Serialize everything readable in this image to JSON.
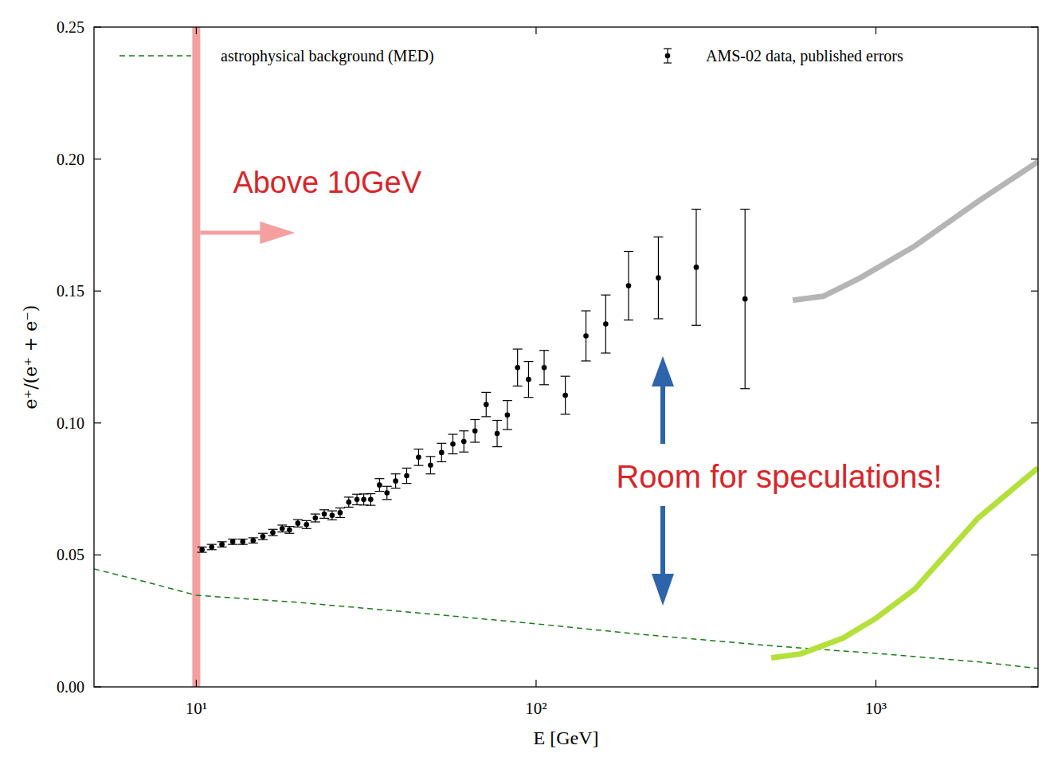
{
  "chart_data": {
    "type": "scatter",
    "x_label": "E [GeV]",
    "y_label": "e⁺/(e⁺ + e⁻)",
    "log": "x",
    "grid": false,
    "legend": "top",
    "xlim": [
      5,
      3000
    ],
    "ylim": [
      0,
      0.25
    ],
    "xticks": [
      {
        "value": 10,
        "label": "10¹"
      },
      {
        "value": 100,
        "label": "10²"
      },
      {
        "value": 1000,
        "label": "10³"
      }
    ],
    "yticks": [
      {
        "value": 0,
        "label": "0.00"
      },
      {
        "value": 0.05,
        "label": "0.05"
      },
      {
        "value": 0.1,
        "label": "0.10"
      },
      {
        "value": 0.15,
        "label": "0.15"
      },
      {
        "value": 0.2,
        "label": "0.20"
      },
      {
        "value": 0.25,
        "label": "0.25"
      }
    ],
    "series": [
      {
        "name": "astrophysical background (MED)",
        "type": "line",
        "line_style": "dashed",
        "color": "#1a7a1a",
        "x": [
          5,
          7,
          10,
          20,
          50,
          100,
          200,
          500,
          1000,
          2000,
          3000
        ],
        "values": [
          0.0447,
          0.04,
          0.0347,
          0.032,
          0.0275,
          0.0239,
          0.02,
          0.0155,
          0.0127,
          0.0095,
          0.007
        ]
      },
      {
        "name": "AMS-02 data, published errors",
        "type": "scatter",
        "marker": "circle",
        "color": "#000000",
        "x": [
          10.4,
          11.1,
          11.9,
          12.8,
          13.7,
          14.7,
          15.7,
          16.8,
          17.9,
          18.8,
          19.9,
          21.1,
          22.4,
          23.8,
          25.1,
          26.5,
          28.1,
          29.7,
          31.1,
          32.6,
          34.6,
          36.4,
          38.6,
          41.6,
          45.1,
          48.9,
          52.7,
          56.9,
          61.3,
          66.1,
          71.3,
          76.8,
          82.3,
          88.2,
          95.0,
          105.6,
          121.9,
          140.2,
          160.3,
          187.1,
          229.0,
          296.0,
          412.0
        ],
        "values": [
          0.052,
          0.053,
          0.054,
          0.055,
          0.055,
          0.0555,
          0.057,
          0.0585,
          0.06,
          0.0595,
          0.062,
          0.0615,
          0.064,
          0.0655,
          0.065,
          0.066,
          0.07,
          0.071,
          0.071,
          0.071,
          0.0765,
          0.0735,
          0.078,
          0.08,
          0.087,
          0.084,
          0.0888,
          0.092,
          0.093,
          0.097,
          0.107,
          0.096,
          0.103,
          0.121,
          0.1165,
          0.121,
          0.1105,
          0.133,
          0.1375,
          0.152,
          0.155,
          0.159,
          0.147
        ],
        "errors": [
          0.001,
          0.001,
          0.001,
          0.001,
          0.001,
          0.001,
          0.0012,
          0.0012,
          0.0013,
          0.0013,
          0.0014,
          0.0015,
          0.0015,
          0.0016,
          0.0017,
          0.0018,
          0.0019,
          0.002,
          0.0021,
          0.0022,
          0.0024,
          0.0025,
          0.0027,
          0.0029,
          0.0031,
          0.0033,
          0.0035,
          0.0037,
          0.004,
          0.0043,
          0.0046,
          0.005,
          0.0055,
          0.007,
          0.0068,
          0.0065,
          0.0072,
          0.0095,
          0.011,
          0.013,
          0.0155,
          0.022,
          0.034
        ]
      },
      {
        "type": "line",
        "line_style": "solid",
        "color": "#b5b5b5",
        "x": [
          569,
          700,
          900,
          1300,
          2000,
          3000
        ],
        "values": [
          0.1465,
          0.148,
          0.155,
          0.167,
          0.184,
          0.199
        ]
      },
      {
        "type": "line",
        "line_style": "solid",
        "color": "#b4e03c",
        "x": [
          492,
          600,
          800,
          1000,
          1300,
          2000,
          3000
        ],
        "values": [
          0.011,
          0.0125,
          0.0185,
          0.026,
          0.037,
          0.064,
          0.083
        ]
      }
    ],
    "annotations": [
      {
        "text": "Above 10GeV",
        "x": 10
      },
      {
        "text": "Room for speculations!"
      }
    ]
  }
}
